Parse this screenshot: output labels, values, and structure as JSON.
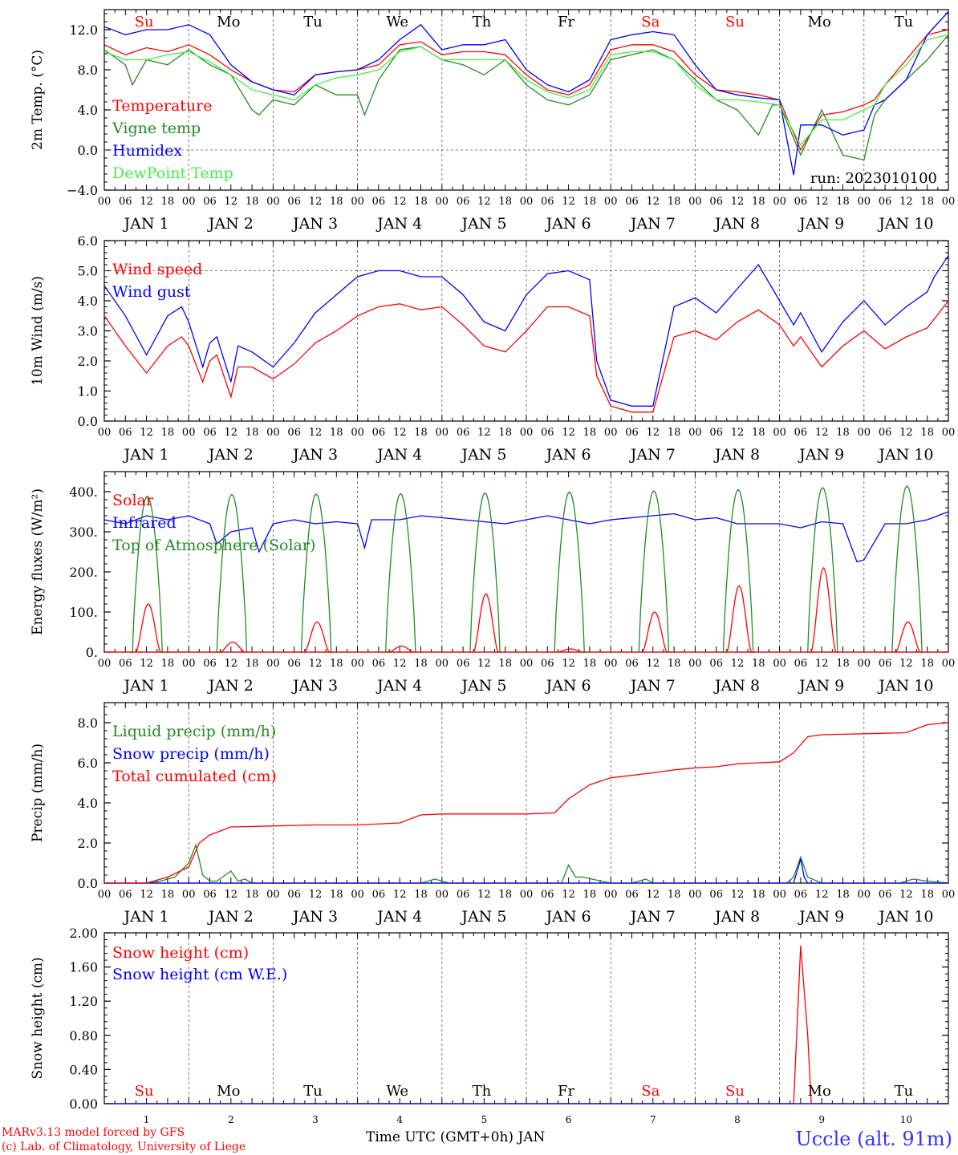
{
  "figure": {
    "footer_model": "MARv3.13 model forced by GFS",
    "footer_lab": "(c) Lab. of Climatology, University of Liege",
    "x_axis_title": "Time UTC (GMT+0h) JAN",
    "station": "Uccle (alt. 91m)",
    "run_label": "run: 2023010100",
    "colors": {
      "red": "#ff0000",
      "green": "#228b22",
      "blue": "#0000ff",
      "lightgreen": "#44ee44",
      "grid": "#555555"
    }
  },
  "x_axis": {
    "hour_ticks": [
      "00",
      "06",
      "12",
      "18"
    ],
    "end_tick": "00",
    "day_labels": [
      "JAN  1",
      "JAN  2",
      "JAN  3",
      "JAN  4",
      "JAN  5",
      "JAN  6",
      "JAN  7",
      "JAN  8",
      "JAN  9",
      "JAN 10"
    ],
    "weekday_labels": [
      {
        "text": "Su",
        "weekend": true
      },
      {
        "text": "Mo",
        "weekend": false
      },
      {
        "text": "Tu",
        "weekend": false
      },
      {
        "text": "We",
        "weekend": false
      },
      {
        "text": "Th",
        "weekend": false
      },
      {
        "text": "Fr",
        "weekend": false
      },
      {
        "text": "Sa",
        "weekend": true
      },
      {
        "text": "Su",
        "weekend": true
      },
      {
        "text": "Mo",
        "weekend": false
      },
      {
        "text": "Tu",
        "weekend": false
      }
    ],
    "bottom_day_numbers": [
      "1",
      "2",
      "3",
      "4",
      "5",
      "6",
      "7",
      "8",
      "9",
      "10"
    ]
  },
  "chart_data": [
    {
      "type": "line",
      "id": "temp",
      "ylabel": "2m Temp. (°C)",
      "ylim": [
        -4,
        14
      ],
      "yticks": [
        -4,
        0,
        4,
        8,
        12
      ],
      "ytick_labels": [
        "−4.0",
        "0.0",
        "4.0",
        "8.0",
        "12.0"
      ],
      "zero_line": 0,
      "x_unit": "hours since JAN 1 00 UTC",
      "x_range": [
        0,
        240
      ],
      "series": [
        {
          "name": "Temperature",
          "color": "#ff0000",
          "x": [
            0,
            6,
            12,
            18,
            24,
            30,
            36,
            42,
            48,
            54,
            60,
            66,
            72,
            78,
            84,
            90,
            96,
            102,
            108,
            114,
            120,
            126,
            132,
            138,
            144,
            150,
            156,
            162,
            168,
            174,
            180,
            186,
            192,
            198,
            204,
            210,
            216,
            219,
            222,
            228,
            234,
            240
          ],
          "y": [
            10.5,
            9.5,
            10.2,
            9.8,
            10.5,
            9.5,
            8.0,
            6.8,
            6.0,
            5.8,
            7.5,
            7.8,
            8.0,
            8.5,
            10.5,
            10.8,
            9.5,
            9.8,
            9.8,
            9.5,
            7.5,
            6.0,
            5.5,
            6.5,
            10.0,
            10.5,
            10.5,
            9.8,
            7.5,
            6.0,
            5.8,
            5.5,
            5.0,
            0.0,
            3.5,
            3.8,
            4.5,
            5.0,
            6.5,
            9.0,
            11.5,
            12.0
          ]
        },
        {
          "name": "Vigne temp",
          "color": "#228b22",
          "x": [
            0,
            6,
            8,
            12,
            18,
            24,
            30,
            36,
            42,
            44,
            48,
            54,
            60,
            66,
            72,
            74,
            78,
            84,
            90,
            96,
            102,
            108,
            114,
            120,
            126,
            132,
            138,
            144,
            150,
            156,
            162,
            168,
            174,
            180,
            186,
            190,
            192,
            198,
            204,
            210,
            216,
            219,
            222,
            228,
            234,
            240
          ],
          "y": [
            10.0,
            8.5,
            6.5,
            9.0,
            8.5,
            10.0,
            8.5,
            7.5,
            4.0,
            3.5,
            5.0,
            4.5,
            6.5,
            5.5,
            5.5,
            3.5,
            7.0,
            10.0,
            10.3,
            9.0,
            8.5,
            7.5,
            9.0,
            6.5,
            5.0,
            4.5,
            5.5,
            9.0,
            9.5,
            10.0,
            9.0,
            7.0,
            5.0,
            4.0,
            1.5,
            4.5,
            4.5,
            -0.5,
            4.0,
            -0.5,
            -1.0,
            3.5,
            5.0,
            7.0,
            9.0,
            11.5
          ]
        },
        {
          "name": "Humidex",
          "color": "#0000ff",
          "x": [
            0,
            6,
            12,
            18,
            24,
            30,
            36,
            42,
            48,
            54,
            60,
            66,
            72,
            78,
            84,
            90,
            96,
            102,
            108,
            114,
            120,
            126,
            132,
            138,
            144,
            150,
            156,
            162,
            168,
            174,
            180,
            186,
            192,
            196,
            198,
            204,
            210,
            216,
            219,
            222,
            228,
            234,
            240
          ],
          "y": [
            12.3,
            11.5,
            12.0,
            12.0,
            12.5,
            11.5,
            8.5,
            6.8,
            6.0,
            5.5,
            7.5,
            7.8,
            8.0,
            9.0,
            11.0,
            12.5,
            10.0,
            10.5,
            10.5,
            11.0,
            8.0,
            6.5,
            5.8,
            7.0,
            11.0,
            11.5,
            11.8,
            11.5,
            8.5,
            6.0,
            5.5,
            5.2,
            5.0,
            -2.5,
            2.5,
            2.5,
            1.5,
            2.0,
            4.5,
            5.0,
            7.0,
            11.5,
            13.8
          ]
        },
        {
          "name": "DewPoint Temp",
          "color": "#44ee44",
          "x": [
            0,
            6,
            12,
            18,
            24,
            30,
            36,
            42,
            48,
            54,
            60,
            66,
            72,
            78,
            84,
            90,
            96,
            102,
            108,
            114,
            120,
            126,
            132,
            138,
            144,
            150,
            156,
            162,
            168,
            174,
            180,
            186,
            192,
            198,
            204,
            210,
            216,
            219,
            222,
            228,
            234,
            240
          ],
          "y": [
            9.8,
            9.0,
            9.0,
            9.5,
            9.8,
            8.8,
            7.5,
            6.0,
            5.5,
            5.0,
            6.5,
            7.2,
            7.5,
            8.0,
            9.8,
            10.3,
            9.0,
            9.0,
            9.0,
            9.0,
            7.0,
            5.8,
            5.2,
            6.0,
            9.5,
            9.8,
            9.8,
            9.0,
            6.5,
            5.0,
            5.0,
            4.8,
            4.5,
            0.5,
            3.0,
            3.0,
            4.0,
            4.5,
            6.5,
            8.5,
            11.0,
            11.5
          ]
        }
      ]
    },
    {
      "type": "line",
      "id": "wind",
      "ylabel": "10m Wind (m/s)",
      "ylim": [
        0,
        6
      ],
      "yticks": [
        0,
        1,
        2,
        3,
        4,
        5,
        6
      ],
      "ytick_labels": [
        "0.0",
        "1.0",
        "2.0",
        "3.0",
        "4.0",
        "5.0",
        "6.0"
      ],
      "ref_line": 5,
      "x_unit": "hours since JAN 1 00 UTC",
      "x_range": [
        0,
        240
      ],
      "series": [
        {
          "name": "Wind speed",
          "color": "#ff0000",
          "x": [
            0,
            6,
            12,
            18,
            22,
            24,
            28,
            30,
            32,
            36,
            38,
            42,
            48,
            54,
            60,
            66,
            72,
            78,
            84,
            90,
            96,
            102,
            108,
            114,
            120,
            126,
            132,
            138,
            140,
            144,
            150,
            156,
            162,
            168,
            174,
            180,
            186,
            192,
            196,
            198,
            204,
            210,
            216,
            222,
            228,
            234,
            236,
            240
          ],
          "y": [
            3.5,
            2.5,
            1.6,
            2.5,
            2.8,
            2.5,
            1.3,
            2.0,
            2.2,
            0.8,
            1.8,
            1.8,
            1.4,
            1.9,
            2.6,
            3.0,
            3.5,
            3.8,
            3.9,
            3.7,
            3.8,
            3.2,
            2.5,
            2.3,
            3.0,
            3.8,
            3.8,
            3.5,
            1.5,
            0.5,
            0.3,
            0.3,
            2.8,
            3.0,
            2.7,
            3.3,
            3.7,
            3.2,
            2.5,
            2.8,
            1.8,
            2.5,
            3.0,
            2.4,
            2.8,
            3.1,
            3.4,
            4.0
          ]
        },
        {
          "name": "Wind gust",
          "color": "#0000ff",
          "x": [
            0,
            6,
            12,
            18,
            22,
            24,
            28,
            30,
            32,
            36,
            38,
            42,
            48,
            54,
            60,
            66,
            72,
            78,
            84,
            90,
            96,
            102,
            108,
            114,
            120,
            126,
            132,
            138,
            140,
            144,
            150,
            156,
            162,
            168,
            174,
            180,
            186,
            192,
            196,
            198,
            204,
            210,
            216,
            222,
            228,
            234,
            236,
            240
          ],
          "y": [
            4.5,
            3.5,
            2.2,
            3.5,
            3.8,
            3.3,
            1.8,
            2.6,
            2.8,
            1.3,
            2.5,
            2.3,
            1.8,
            2.6,
            3.6,
            4.2,
            4.8,
            5.0,
            5.0,
            4.8,
            4.8,
            4.2,
            3.3,
            3.0,
            4.2,
            4.9,
            5.0,
            4.7,
            2.0,
            0.7,
            0.5,
            0.5,
            3.8,
            4.1,
            3.6,
            4.4,
            5.2,
            4.0,
            3.2,
            3.6,
            2.3,
            3.3,
            4.0,
            3.2,
            3.8,
            4.3,
            4.8,
            5.5
          ]
        }
      ]
    },
    {
      "type": "line",
      "id": "energy",
      "ylabel": "Energy fluxes (W/m²)",
      "ylim": [
        0,
        450
      ],
      "yticks": [
        0,
        100,
        200,
        300,
        400
      ],
      "ytick_labels": [
        "0.",
        "100.",
        "200.",
        "300.",
        "400."
      ],
      "x_unit": "hours since JAN 1 00 UTC",
      "x_range": [
        0,
        240
      ],
      "daily_series": {
        "Top of Atmosphere (Solar)": {
          "color": "#228b22",
          "sunrise_hour": 8,
          "sunset_hour": 16.5,
          "daily_peak": [
            389,
            393,
            394,
            395,
            397,
            399,
            402,
            405,
            410,
            414
          ]
        },
        "Solar": {
          "color": "#ff0000",
          "sunrise_hour": 9,
          "sunset_hour": 16,
          "daily_peak": [
            120,
            25,
            75,
            15,
            145,
            8,
            100,
            165,
            210,
            75
          ]
        }
      },
      "series": [
        {
          "name": "Solar",
          "color": "#ff0000"
        },
        {
          "name": "Infrared",
          "color": "#0000ff",
          "x": [
            0,
            6,
            12,
            18,
            24,
            30,
            32,
            36,
            42,
            44,
            48,
            54,
            60,
            66,
            72,
            74,
            76,
            84,
            90,
            96,
            102,
            108,
            114,
            120,
            126,
            132,
            138,
            144,
            150,
            156,
            162,
            168,
            174,
            180,
            186,
            192,
            198,
            204,
            210,
            214,
            216,
            222,
            228,
            234,
            240
          ],
          "y": [
            330,
            320,
            340,
            330,
            340,
            320,
            270,
            300,
            310,
            250,
            320,
            330,
            320,
            325,
            320,
            260,
            330,
            330,
            340,
            335,
            330,
            325,
            320,
            330,
            340,
            330,
            320,
            330,
            335,
            340,
            345,
            330,
            335,
            320,
            320,
            320,
            310,
            325,
            320,
            225,
            230,
            320,
            320,
            330,
            350
          ]
        }
      ]
    },
    {
      "type": "line",
      "id": "precip",
      "ylabel": "Precip (mm/h)",
      "ylim": [
        0,
        9
      ],
      "yticks": [
        0,
        2,
        4,
        6,
        8
      ],
      "ytick_labels": [
        "0.0",
        "2.0",
        "4.0",
        "6.0",
        "8.0"
      ],
      "x_unit": "hours since JAN 1 00 UTC",
      "x_range": [
        0,
        240
      ],
      "series": [
        {
          "name": "Liquid precip (mm/h)",
          "color": "#228b22",
          "x": [
            0,
            12,
            16,
            20,
            24,
            26,
            28,
            30,
            32,
            36,
            38,
            40,
            42,
            48,
            90,
            94,
            98,
            120,
            130,
            132,
            134,
            136,
            144,
            150,
            154,
            156,
            162,
            186,
            194,
            196,
            198,
            200,
            204,
            226,
            230,
            234,
            240
          ],
          "y": [
            0,
            0,
            0.1,
            0.3,
            1.0,
            1.9,
            0.4,
            0.1,
            0.1,
            0.6,
            0.1,
            0.2,
            0,
            0,
            0,
            0.2,
            0,
            0,
            0,
            0.9,
            0.3,
            0.3,
            0,
            0,
            0.2,
            0,
            0,
            0,
            0,
            0.3,
            1.3,
            0.3,
            0,
            0,
            0.2,
            0.1,
            0
          ]
        },
        {
          "name": "Snow precip (mm/h)",
          "color": "#0000ff",
          "x": [
            0,
            196,
            198,
            199,
            200,
            240
          ],
          "y": [
            0,
            0,
            1.2,
            0.3,
            0,
            0
          ]
        },
        {
          "name": "Total cumulated (cm)",
          "color": "#ff0000",
          "x": [
            0,
            12,
            18,
            24,
            27,
            30,
            36,
            48,
            60,
            72,
            84,
            90,
            96,
            108,
            120,
            128,
            132,
            138,
            144,
            156,
            162,
            168,
            174,
            180,
            186,
            192,
            196,
            200,
            204,
            216,
            228,
            234,
            240
          ],
          "y": [
            0,
            0,
            0.3,
            0.8,
            2.0,
            2.4,
            2.8,
            2.85,
            2.9,
            2.9,
            3.0,
            3.4,
            3.45,
            3.45,
            3.45,
            3.5,
            4.2,
            4.9,
            5.25,
            5.5,
            5.65,
            5.75,
            5.8,
            5.95,
            6.0,
            6.05,
            6.5,
            7.3,
            7.4,
            7.45,
            7.5,
            7.9,
            8.0
          ]
        }
      ]
    },
    {
      "type": "line",
      "id": "snow",
      "ylabel": "Snow height (cm)",
      "ylim": [
        0,
        2
      ],
      "yticks": [
        0,
        0.4,
        0.8,
        1.2,
        1.6,
        2.0
      ],
      "ytick_labels": [
        "0.00",
        "0.40",
        "0.80",
        "1.20",
        "1.60",
        "2.00"
      ],
      "x_unit": "hours since JAN 1 00 UTC",
      "x_range": [
        0,
        240
      ],
      "series": [
        {
          "name": "Snow height (cm)",
          "color": "#ff0000",
          "x": [
            0,
            196,
            198,
            200,
            201,
            240
          ],
          "y": [
            0,
            0,
            1.85,
            0.8,
            0,
            0
          ]
        },
        {
          "name": "Snow height (cm W.E.)",
          "color": "#0000ff",
          "x": [
            0,
            240
          ],
          "y": [
            0,
            0
          ]
        }
      ]
    }
  ]
}
